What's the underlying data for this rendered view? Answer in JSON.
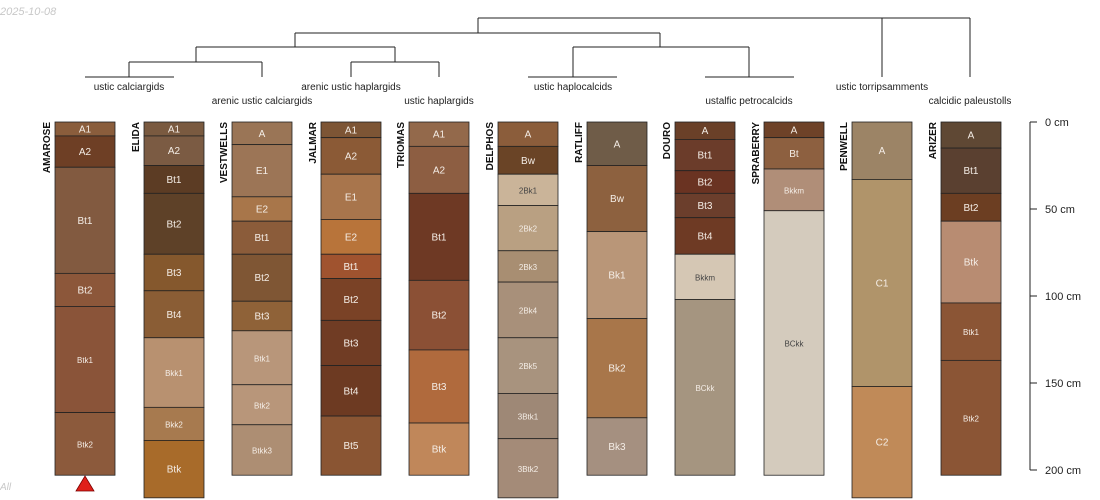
{
  "stamp": "2025-10-08",
  "corner_text": "All",
  "tree_labels": [
    "ustic calciargids",
    "arenic ustic calciargids",
    "arenic ustic haplargids",
    "ustic haplargids",
    "ustic haplocalcids",
    "ustalfic petrocalcids",
    "ustic torripsamments",
    "calcidic paleustolls"
  ],
  "depth_axis": {
    "ticks": [
      {
        "depth": 0,
        "label": "0 cm"
      },
      {
        "depth": 50,
        "label": "50 cm"
      },
      {
        "depth": 100,
        "label": "100 cm"
      },
      {
        "depth": 150,
        "label": "150 cm"
      },
      {
        "depth": 200,
        "label": "200 cm"
      }
    ]
  },
  "profiles": [
    {
      "name": "AMAROSE",
      "marker": "red-triangle-icon",
      "horizons": [
        {
          "name": "A1",
          "top": 0,
          "bottom": 8,
          "color": "#8a5d3c"
        },
        {
          "name": "A2",
          "top": 8,
          "bottom": 26,
          "color": "#6e3f25"
        },
        {
          "name": "Bt1",
          "top": 26,
          "bottom": 87,
          "color": "#825a40"
        },
        {
          "name": "Bt2",
          "top": 87,
          "bottom": 106,
          "color": "#8c573a"
        },
        {
          "name": "Btk1",
          "top": 106,
          "bottom": 167,
          "color": "#8a5439"
        },
        {
          "name": "Btk2",
          "top": 167,
          "bottom": 203,
          "color": "#8c5a3c"
        }
      ]
    },
    {
      "name": "ELIDA",
      "horizons": [
        {
          "name": "A1",
          "top": 0,
          "bottom": 8,
          "color": "#7a5a40"
        },
        {
          "name": "A2",
          "top": 8,
          "bottom": 25,
          "color": "#7b5b43"
        },
        {
          "name": "Bt1",
          "top": 25,
          "bottom": 41,
          "color": "#5c3c24"
        },
        {
          "name": "Bt2",
          "top": 41,
          "bottom": 76,
          "color": "#5e4128"
        },
        {
          "name": "Bt3",
          "top": 76,
          "bottom": 97,
          "color": "#85582d"
        },
        {
          "name": "Bt4",
          "top": 97,
          "bottom": 124,
          "color": "#8a5d35"
        },
        {
          "name": "Bkk1",
          "top": 124,
          "bottom": 164,
          "color": "#b89170"
        },
        {
          "name": "Bkk2",
          "top": 164,
          "bottom": 183,
          "color": "#a77a4f"
        },
        {
          "name": "Btk",
          "top": 183,
          "bottom": 216,
          "color": "#a86b2a"
        }
      ]
    },
    {
      "name": "VESTWELLS",
      "horizons": [
        {
          "name": "A",
          "top": 0,
          "bottom": 13,
          "color": "#9a7556"
        },
        {
          "name": "E1",
          "top": 13,
          "bottom": 43,
          "color": "#9c7556"
        },
        {
          "name": "E2",
          "top": 43,
          "bottom": 57,
          "color": "#a8764a"
        },
        {
          "name": "Bt1",
          "top": 57,
          "bottom": 76,
          "color": "#8b5c3a"
        },
        {
          "name": "Bt2",
          "top": 76,
          "bottom": 103,
          "color": "#7f5634"
        },
        {
          "name": "Bt3",
          "top": 103,
          "bottom": 120,
          "color": "#8f6238"
        },
        {
          "name": "Btk1",
          "top": 120,
          "bottom": 151,
          "color": "#b8967a"
        },
        {
          "name": "Btk2",
          "top": 151,
          "bottom": 174,
          "color": "#b8967a"
        },
        {
          "name": "Btkk3",
          "top": 174,
          "bottom": 203,
          "color": "#ad8e73"
        }
      ]
    },
    {
      "name": "JALMAR",
      "horizons": [
        {
          "name": "A1",
          "top": 0,
          "bottom": 9,
          "color": "#7d5535"
        },
        {
          "name": "A2",
          "top": 9,
          "bottom": 30,
          "color": "#8b5a36"
        },
        {
          "name": "E1",
          "top": 30,
          "bottom": 56,
          "color": "#a8754c"
        },
        {
          "name": "E2",
          "top": 56,
          "bottom": 76,
          "color": "#b8743a"
        },
        {
          "name": "Bt1",
          "top": 76,
          "bottom": 90,
          "color": "#a0532f"
        },
        {
          "name": "Bt2",
          "top": 90,
          "bottom": 114,
          "color": "#7a4226"
        },
        {
          "name": "Bt3",
          "top": 114,
          "bottom": 140,
          "color": "#703c24"
        },
        {
          "name": "Bt4",
          "top": 140,
          "bottom": 169,
          "color": "#6d3a22"
        },
        {
          "name": "Bt5",
          "top": 169,
          "bottom": 203,
          "color": "#8a5533"
        }
      ]
    },
    {
      "name": "TRIOMAS",
      "horizons": [
        {
          "name": "A1",
          "top": 0,
          "bottom": 14,
          "color": "#93694b"
        },
        {
          "name": "A2",
          "top": 14,
          "bottom": 41,
          "color": "#8d5e42"
        },
        {
          "name": "Bt1",
          "top": 41,
          "bottom": 91,
          "color": "#6e3924"
        },
        {
          "name": "Bt2",
          "top": 91,
          "bottom": 131,
          "color": "#8b5035"
        },
        {
          "name": "Bt3",
          "top": 131,
          "bottom": 173,
          "color": "#b06a3d"
        },
        {
          "name": "Btk",
          "top": 173,
          "bottom": 203,
          "color": "#c0875a"
        }
      ]
    },
    {
      "name": "DELPHOS",
      "horizons": [
        {
          "name": "A",
          "top": 0,
          "bottom": 14,
          "color": "#8b5d3b"
        },
        {
          "name": "Bw",
          "top": 14,
          "bottom": 30,
          "color": "#6a4426"
        },
        {
          "name": "2Bk1",
          "top": 30,
          "bottom": 48,
          "color": "#cab499"
        },
        {
          "name": "2Bk2",
          "top": 48,
          "bottom": 74,
          "color": "#b9a082"
        },
        {
          "name": "2Bk3",
          "top": 74,
          "bottom": 92,
          "color": "#a88e72"
        },
        {
          "name": "2Bk4",
          "top": 92,
          "bottom": 124,
          "color": "#a8907a"
        },
        {
          "name": "2Bk5",
          "top": 124,
          "bottom": 156,
          "color": "#a8937e"
        },
        {
          "name": "3Btk1",
          "top": 156,
          "bottom": 182,
          "color": "#9e8876"
        },
        {
          "name": "3Btk2",
          "top": 182,
          "bottom": 216,
          "color": "#a48b78"
        }
      ]
    },
    {
      "name": "RATLIFF",
      "horizons": [
        {
          "name": "A",
          "top": 0,
          "bottom": 25,
          "color": "#6f5c48"
        },
        {
          "name": "Bw",
          "top": 25,
          "bottom": 63,
          "color": "#8d613f"
        },
        {
          "name": "Bk1",
          "top": 63,
          "bottom": 113,
          "color": "#b99678"
        },
        {
          "name": "Bk2",
          "top": 113,
          "bottom": 170,
          "color": "#a8764a"
        },
        {
          "name": "Bk3",
          "top": 170,
          "bottom": 203,
          "color": "#a59080"
        }
      ]
    },
    {
      "name": "DOURO",
      "horizons": [
        {
          "name": "A",
          "top": 0,
          "bottom": 10,
          "color": "#6a4028"
        },
        {
          "name": "Bt1",
          "top": 10,
          "bottom": 28,
          "color": "#6b3c2a"
        },
        {
          "name": "Bt2",
          "top": 28,
          "bottom": 41,
          "color": "#6a3322"
        },
        {
          "name": "Bt3",
          "top": 41,
          "bottom": 55,
          "color": "#6b3e2c"
        },
        {
          "name": "Bt4",
          "top": 55,
          "bottom": 76,
          "color": "#6e3a24"
        },
        {
          "name": "Bkkm",
          "top": 76,
          "bottom": 102,
          "color": "#d5c7b4"
        },
        {
          "name": "BCkk",
          "top": 102,
          "bottom": 203,
          "color": "#a59580"
        }
      ]
    },
    {
      "name": "SPRABERRY",
      "horizons": [
        {
          "name": "A",
          "top": 0,
          "bottom": 9,
          "color": "#6e4228"
        },
        {
          "name": "Bt",
          "top": 9,
          "bottom": 27,
          "color": "#8d6040"
        },
        {
          "name": "Bkkm",
          "top": 27,
          "bottom": 51,
          "color": "#b08e78"
        },
        {
          "name": "BCkk",
          "top": 51,
          "bottom": 203,
          "color": "#d4cbbd"
        }
      ]
    },
    {
      "name": "PENWELL",
      "horizons": [
        {
          "name": "A",
          "top": 0,
          "bottom": 33,
          "color": "#9c8466"
        },
        {
          "name": "C1",
          "top": 33,
          "bottom": 152,
          "color": "#b0946a"
        },
        {
          "name": "C2",
          "top": 152,
          "bottom": 216,
          "color": "#c08a58"
        }
      ]
    },
    {
      "name": "ARIZER",
      "horizons": [
        {
          "name": "A",
          "top": 0,
          "bottom": 15,
          "color": "#5f4834"
        },
        {
          "name": "Bt1",
          "top": 15,
          "bottom": 41,
          "color": "#5a4030"
        },
        {
          "name": "Bt2",
          "top": 41,
          "bottom": 57,
          "color": "#6c3e22"
        },
        {
          "name": "Btk",
          "top": 57,
          "bottom": 104,
          "color": "#b88c72"
        },
        {
          "name": "Btk1",
          "top": 104,
          "bottom": 137,
          "color": "#8b5535"
        },
        {
          "name": "Btk2",
          "top": 137,
          "bottom": 203,
          "color": "#8b5535"
        }
      ]
    }
  ]
}
